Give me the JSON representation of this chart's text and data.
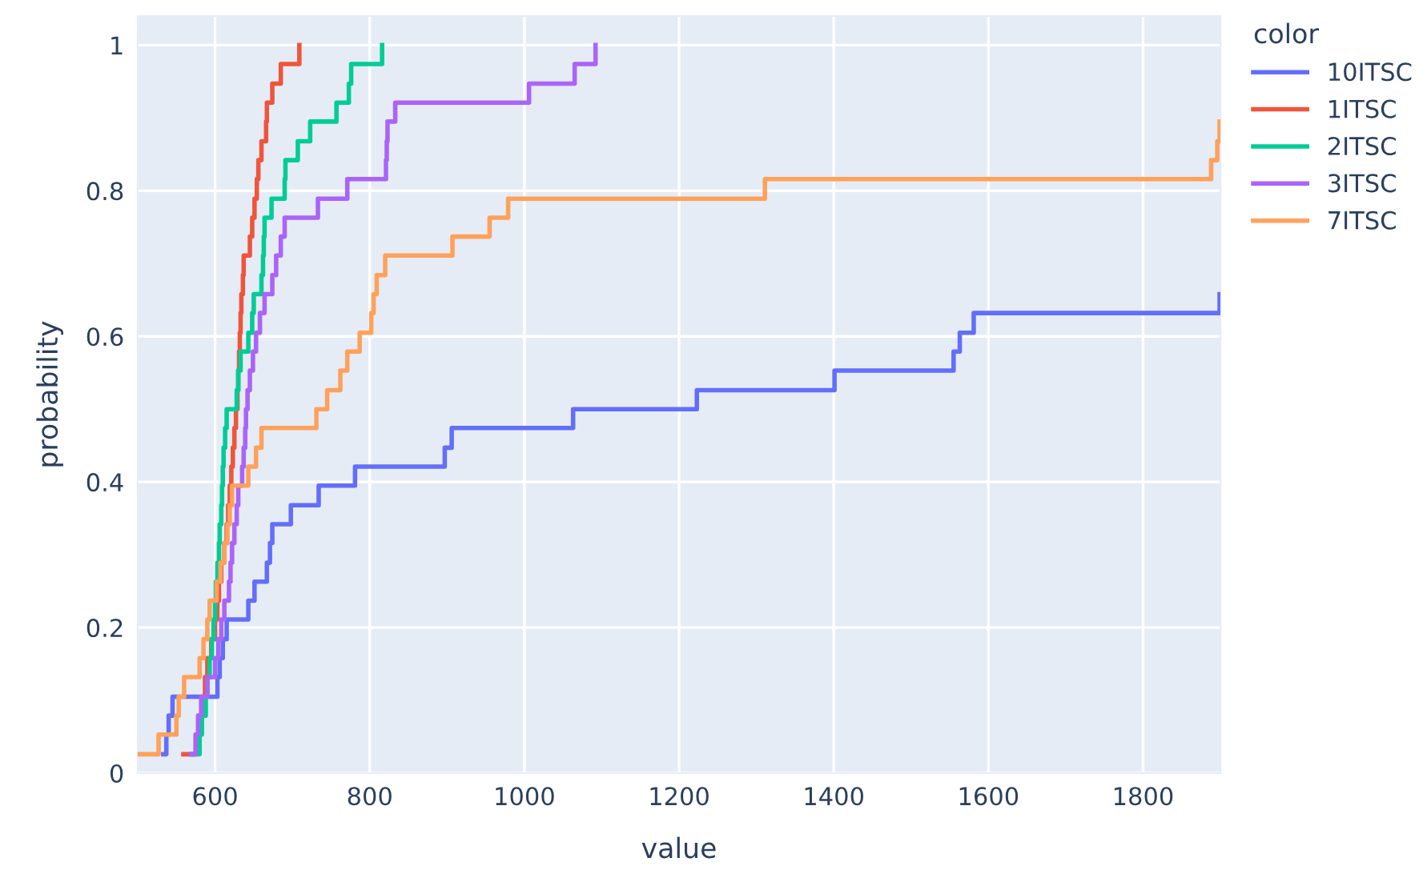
{
  "chart_data": {
    "type": "step",
    "xlabel": "value",
    "ylabel": "probability",
    "legend_title": "color",
    "legend": "right",
    "grid": true,
    "xlim": [
      500,
      1900
    ],
    "xticks": [
      600,
      800,
      1000,
      1200,
      1400,
      1600,
      1800
    ],
    "ylim": [
      0,
      1.04
    ],
    "yticks": [
      0,
      0.2,
      0.4,
      0.6,
      0.8,
      1
    ],
    "series": [
      {
        "name": "10ITSC",
        "color": "#636efa",
        "x": [
          533,
          537,
          540,
          545,
          603,
          606,
          610,
          615,
          643,
          651,
          667,
          671,
          674,
          698,
          734,
          781,
          897,
          906,
          1063,
          1223,
          1401,
          1555,
          1563,
          1581,
          1899
        ],
        "values": [
          0.026,
          0.053,
          0.079,
          0.105,
          0.132,
          0.158,
          0.184,
          0.211,
          0.237,
          0.263,
          0.289,
          0.316,
          0.342,
          0.368,
          0.395,
          0.421,
          0.447,
          0.474,
          0.5,
          0.526,
          0.553,
          0.579,
          0.605,
          0.632,
          0.658
        ]
      },
      {
        "name": "1ITSC",
        "color": "#ef553b",
        "x": [
          559,
          575,
          580,
          583,
          587,
          590,
          595,
          600,
          603,
          605,
          608,
          612,
          615,
          617,
          619,
          621,
          623,
          625,
          627,
          629,
          630,
          631,
          632,
          633,
          634,
          636,
          637,
          645,
          648,
          651,
          654,
          656,
          660,
          666,
          667,
          674,
          685,
          709
        ],
        "values": [
          0.026,
          0.053,
          0.079,
          0.105,
          0.132,
          0.158,
          0.184,
          0.211,
          0.237,
          0.263,
          0.289,
          0.316,
          0.342,
          0.368,
          0.395,
          0.421,
          0.447,
          0.474,
          0.5,
          0.526,
          0.553,
          0.579,
          0.605,
          0.632,
          0.658,
          0.684,
          0.711,
          0.737,
          0.763,
          0.789,
          0.816,
          0.842,
          0.868,
          0.895,
          0.921,
          0.947,
          0.974,
          1.0
        ]
      },
      {
        "name": "2ITSC",
        "color": "#00cc96",
        "x": [
          570,
          580,
          583,
          588,
          590,
          593,
          596,
          598,
          600,
          601,
          603,
          605,
          606,
          608,
          609,
          610,
          611,
          613,
          615,
          628,
          630,
          633,
          643,
          648,
          650,
          660,
          662,
          663,
          664,
          673,
          690,
          691,
          707,
          723,
          757,
          773,
          776,
          816
        ],
        "values": [
          0.026,
          0.053,
          0.079,
          0.105,
          0.132,
          0.158,
          0.184,
          0.211,
          0.237,
          0.263,
          0.289,
          0.316,
          0.342,
          0.368,
          0.395,
          0.421,
          0.447,
          0.474,
          0.5,
          0.526,
          0.553,
          0.579,
          0.605,
          0.632,
          0.658,
          0.684,
          0.711,
          0.737,
          0.763,
          0.789,
          0.816,
          0.842,
          0.868,
          0.895,
          0.921,
          0.947,
          0.974,
          1.0
        ]
      },
      {
        "name": "3ITSC",
        "color": "#ab63fa",
        "x": [
          569,
          575,
          578,
          582,
          590,
          600,
          604,
          608,
          612,
          618,
          620,
          622,
          625,
          628,
          630,
          635,
          637,
          639,
          640,
          642,
          645,
          649,
          653,
          658,
          664,
          674,
          679,
          685,
          690,
          733,
          771,
          821,
          822,
          823,
          833,
          1006,
          1065,
          1092
        ],
        "values": [
          0.026,
          0.053,
          0.079,
          0.105,
          0.132,
          0.158,
          0.184,
          0.211,
          0.237,
          0.263,
          0.289,
          0.316,
          0.342,
          0.368,
          0.395,
          0.421,
          0.447,
          0.474,
          0.5,
          0.526,
          0.553,
          0.579,
          0.605,
          0.632,
          0.658,
          0.684,
          0.711,
          0.737,
          0.763,
          0.789,
          0.816,
          0.842,
          0.868,
          0.895,
          0.921,
          0.947,
          0.974,
          1.0
        ]
      },
      {
        "name": "7ITSC",
        "color": "#ffa15a",
        "x": [
          500,
          527,
          550,
          553,
          560,
          580,
          585,
          590,
          593,
          602,
          607,
          612,
          616,
          619,
          622,
          643,
          653,
          660,
          731,
          745,
          762,
          771,
          787,
          802,
          805,
          809,
          820,
          907,
          955,
          979,
          1311,
          1888,
          1896,
          1899
        ],
        "values": [
          0.026,
          0.053,
          0.079,
          0.105,
          0.132,
          0.158,
          0.184,
          0.211,
          0.237,
          0.263,
          0.289,
          0.316,
          0.342,
          0.368,
          0.395,
          0.421,
          0.447,
          0.474,
          0.5,
          0.526,
          0.553,
          0.579,
          0.605,
          0.632,
          0.658,
          0.684,
          0.711,
          0.737,
          0.763,
          0.789,
          0.816,
          0.842,
          0.868,
          0.895
        ]
      }
    ]
  }
}
